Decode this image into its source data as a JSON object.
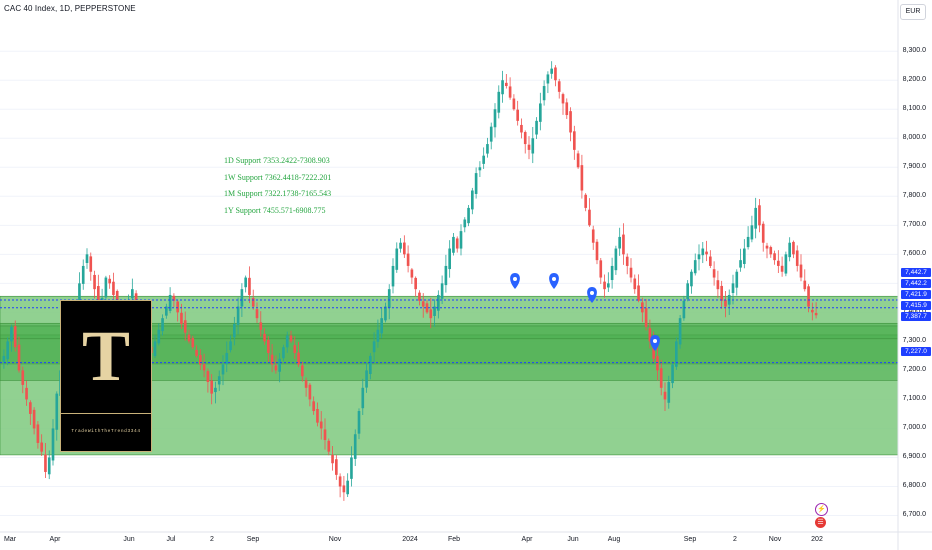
{
  "header": {
    "title": "CAC 40 Index, 1D, PEPPERSTONE",
    "currency": "EUR"
  },
  "supports": [
    "1D Support 7353.2422-7308.903",
    "1W Support 7362.4418-7222.201",
    "1M Support 7322.1738-7165.543",
    "1Y Support 7455.571-6908.775"
  ],
  "logo": {
    "letter": "T",
    "text": "TradeWithTheTrend3344"
  },
  "price_tags": [
    "7,442.7",
    "7,442.2",
    "7,421.9",
    "7,415.9",
    "7,387.7",
    "7,227.0"
  ],
  "colors": {
    "up": "#26a69a",
    "down": "#ef5350",
    "zone_light": "#7ec97e",
    "zone_dark": "#4caf50",
    "marker": "#2962ff",
    "dotted": "#1e3fff"
  },
  "icons": [
    "map-marker-icon",
    "lightning-icon",
    "us-flag-icon"
  ],
  "chart_data": {
    "type": "candlestick",
    "title": "CAC 40 Index, 1D, PEPPERSTONE",
    "ylim": [
      6650,
      8380
    ],
    "yticks": [
      "8,300.0",
      "8,200.0",
      "8,100.0",
      "8,000.0",
      "7,900.0",
      "7,800.0",
      "7,700.0",
      "7,600.0",
      "7,500.0",
      "7,400.0",
      "7,300.0",
      "7,200.0",
      "7,100.0",
      "7,000.0",
      "6,900.0",
      "6,800.0",
      "6,700.0"
    ],
    "xticks": [
      "Mar",
      "Apr",
      "Jun",
      "Jul",
      "2",
      "Sep",
      "Nov",
      "2024",
      "Feb",
      "Apr",
      "Jun",
      "Aug",
      "Sep",
      "2",
      "Nov",
      "202"
    ],
    "zones": [
      [
        7322.17,
        7165.54
      ],
      [
        7455.57,
        6908.78
      ],
      [
        7353.24,
        7308.9
      ],
      [
        7362.44,
        7222.2
      ]
    ],
    "dotted_levels": [
      7442.7,
      7415.9,
      7227.0
    ],
    "series_close": [
      7250,
      7300,
      7350,
      7280,
      7200,
      7150,
      7100,
      7050,
      7000,
      6950,
      6920,
      6850,
      6900,
      7000,
      7120,
      7200,
      7260,
      7300,
      7350,
      7420,
      7500,
      7560,
      7600,
      7540,
      7480,
      7420,
      7450,
      7520,
      7500,
      7460,
      7420,
      7400,
      7380,
      7440,
      7480,
      7400,
      7360,
      7320,
      7280,
      7260,
      7300,
      7340,
      7380,
      7420,
      7460,
      7440,
      7400,
      7360,
      7330,
      7300,
      7280,
      7250,
      7220,
      7200,
      7160,
      7120,
      7140,
      7180,
      7220,
      7260,
      7300,
      7360,
      7420,
      7480,
      7520,
      7460,
      7420,
      7380,
      7340,
      7300,
      7260,
      7220,
      7200,
      7240,
      7280,
      7320,
      7300,
      7260,
      7220,
      7180,
      7140,
      7100,
      7060,
      7020,
      7000,
      6960,
      6920,
      6880,
      6840,
      6800,
      6780,
      6820,
      6900,
      6980,
      7060,
      7140,
      7200,
      7250,
      7300,
      7340,
      7380,
      7420,
      7480,
      7560,
      7620,
      7640,
      7600,
      7560,
      7520,
      7480,
      7440,
      7420,
      7400,
      7380,
      7420,
      7460,
      7500,
      7560,
      7620,
      7660,
      7620,
      7680,
      7720,
      7760,
      7820,
      7880,
      7900,
      7940,
      7980,
      8040,
      8100,
      8160,
      8200,
      8180,
      8140,
      8100,
      8060,
      8020,
      7980,
      7960,
      8000,
      8060,
      8120,
      8180,
      8220,
      8240,
      8200,
      8160,
      8120,
      8080,
      8020,
      7960,
      7900,
      7820,
      7760,
      7700,
      7640,
      7580,
      7520,
      7480,
      7500,
      7560,
      7620,
      7660,
      7600,
      7560,
      7520,
      7480,
      7440,
      7400,
      7350,
      7300,
      7240,
      7200,
      7140,
      7100,
      7160,
      7220,
      7300,
      7380,
      7440,
      7500,
      7540,
      7580,
      7600,
      7620,
      7600,
      7560,
      7520,
      7480,
      7440,
      7420,
      7460,
      7500,
      7540,
      7580,
      7620,
      7660,
      7700,
      7760,
      7700,
      7640,
      7620,
      7600,
      7580,
      7560,
      7540,
      7600,
      7640,
      7600,
      7560,
      7520,
      7480,
      7420,
      7400,
      7390
    ]
  }
}
